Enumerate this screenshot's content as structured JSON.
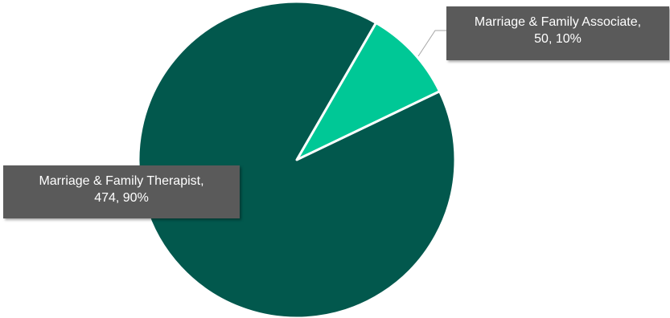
{
  "chart_data": {
    "type": "pie",
    "title": "",
    "slices": [
      {
        "name": "Marriage & Family Associate",
        "value": 50,
        "percent": 10,
        "color": "#00c896",
        "label_line1": "Marriage & Family Associate,",
        "label_line2": "50, 10%"
      },
      {
        "name": "Marriage & Family Therapist",
        "value": 474,
        "percent": 90,
        "color": "#02584d",
        "label_line1": "Marriage & Family Therapist,",
        "label_line2": "474, 90%"
      }
    ],
    "start_angle_deg": 0,
    "direction": "clockwise",
    "slice_border_color": "#ffffff",
    "callout_color": "#5a5a5a",
    "leader_line_color": "#a6a6a6"
  }
}
